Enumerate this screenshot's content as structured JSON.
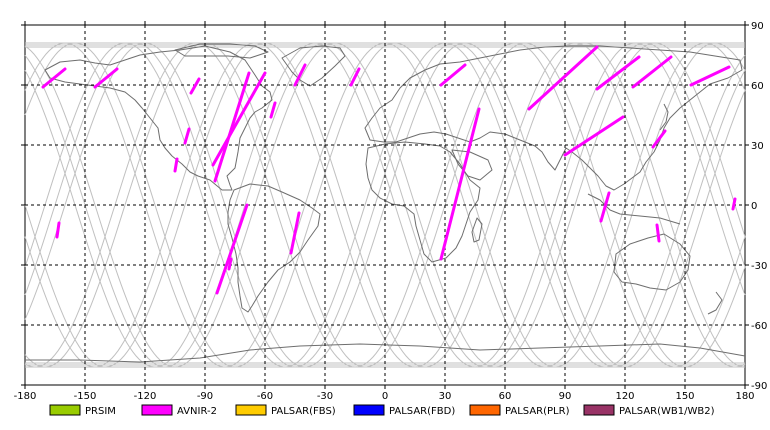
{
  "map": {
    "lon_range": [
      -180,
      180
    ],
    "lat_range": [
      -90,
      90
    ],
    "lon_ticks": [
      {
        "value": -180,
        "label": "-180"
      },
      {
        "value": -150,
        "label": "-150"
      },
      {
        "value": -120,
        "label": "-120"
      },
      {
        "value": -90,
        "label": "-90"
      },
      {
        "value": -60,
        "label": "-60"
      },
      {
        "value": -30,
        "label": "-30"
      },
      {
        "value": 0,
        "label": "0"
      },
      {
        "value": 30,
        "label": "30"
      },
      {
        "value": 60,
        "label": "60"
      },
      {
        "value": 90,
        "label": "90"
      },
      {
        "value": 120,
        "label": "120"
      },
      {
        "value": 150,
        "label": "150"
      },
      {
        "value": 180,
        "label": "180"
      }
    ],
    "lat_ticks": [
      {
        "value": 90,
        "label": "90"
      },
      {
        "value": 60,
        "label": "60"
      },
      {
        "value": 30,
        "label": "30"
      },
      {
        "value": 0,
        "label": "0"
      },
      {
        "value": -30,
        "label": "-30"
      },
      {
        "value": -60,
        "label": "-60"
      },
      {
        "value": -90,
        "label": "-90"
      }
    ],
    "orbit_track_color": "#c0c0c0",
    "coastline_color": "#6e6e6e",
    "grid_color": "#000000",
    "acquisition_color": "#ff00ff"
  },
  "acquisition_segments": [
    {
      "sensor": "AVNIR-2",
      "from": [
        -160,
        68
      ],
      "to": [
        -171,
        59
      ]
    },
    {
      "sensor": "AVNIR-2",
      "from": [
        -134,
        68
      ],
      "to": [
        -145,
        59
      ]
    },
    {
      "sensor": "AVNIR-2",
      "from": [
        -93,
        63
      ],
      "to": [
        -97,
        56
      ]
    },
    {
      "sensor": "AVNIR-2",
      "from": [
        -98,
        38
      ],
      "to": [
        -100,
        31
      ]
    },
    {
      "sensor": "AVNIR-2",
      "from": [
        -104,
        23
      ],
      "to": [
        -105,
        17
      ]
    },
    {
      "sensor": "AVNIR-2",
      "from": [
        -68,
        66
      ],
      "to": [
        -85,
        12
      ]
    },
    {
      "sensor": "AVNIR-2",
      "from": [
        -60,
        66
      ],
      "to": [
        -86,
        20
      ]
    },
    {
      "sensor": "AVNIR-2",
      "from": [
        -55,
        51
      ],
      "to": [
        -57,
        44
      ]
    },
    {
      "sensor": "AVNIR-2",
      "from": [
        -69,
        0
      ],
      "to": [
        -84,
        -44
      ]
    },
    {
      "sensor": "AVNIR-2",
      "from": [
        -77,
        -27
      ],
      "to": [
        -78,
        -32
      ]
    },
    {
      "sensor": "AVNIR-2",
      "from": [
        -43,
        -4
      ],
      "to": [
        -47,
        -24
      ]
    },
    {
      "sensor": "AVNIR-2",
      "from": [
        -163,
        -9
      ],
      "to": [
        -164,
        -16
      ]
    },
    {
      "sensor": "AVNIR-2",
      "from": [
        -40,
        70
      ],
      "to": [
        -45,
        60
      ]
    },
    {
      "sensor": "AVNIR-2",
      "from": [
        -13,
        68
      ],
      "to": [
        -17,
        60
      ]
    },
    {
      "sensor": "AVNIR-2",
      "from": [
        40,
        70
      ],
      "to": [
        28,
        60
      ]
    },
    {
      "sensor": "AVNIR-2",
      "from": [
        47,
        48
      ],
      "to": [
        28,
        -27
      ]
    },
    {
      "sensor": "AVNIR-2",
      "from": [
        106,
        79
      ],
      "to": [
        72,
        48
      ]
    },
    {
      "sensor": "AVNIR-2",
      "from": [
        127,
        74
      ],
      "to": [
        106,
        58
      ]
    },
    {
      "sensor": "AVNIR-2",
      "from": [
        119,
        44
      ],
      "to": [
        90,
        25
      ]
    },
    {
      "sensor": "AVNIR-2",
      "from": [
        143,
        74
      ],
      "to": [
        124,
        59
      ]
    },
    {
      "sensor": "AVNIR-2",
      "from": [
        172,
        69
      ],
      "to": [
        153,
        60
      ]
    },
    {
      "sensor": "AVNIR-2",
      "from": [
        140,
        37
      ],
      "to": [
        134,
        29
      ]
    },
    {
      "sensor": "AVNIR-2",
      "from": [
        112,
        6
      ],
      "to": [
        108,
        -8
      ]
    },
    {
      "sensor": "AVNIR-2",
      "from": [
        136,
        -10
      ],
      "to": [
        137,
        -18
      ]
    },
    {
      "sensor": "AVNIR-2",
      "from": [
        175,
        3
      ],
      "to": [
        174,
        -2
      ]
    }
  ],
  "legend": [
    {
      "id": "prism",
      "label": "PRSIM",
      "color": "#99cc00"
    },
    {
      "id": "avnir2",
      "label": "AVNIR-2",
      "color": "#ff00ff"
    },
    {
      "id": "palsar-fbs",
      "label": "PALSAR(FBS)",
      "color": "#ffcc00"
    },
    {
      "id": "palsar-fbd",
      "label": "PALSAR(FBD)",
      "color": "#0000ff"
    },
    {
      "id": "palsar-plr",
      "label": "PALSAR(PLR)",
      "color": "#ff6600"
    },
    {
      "id": "palsar-wb",
      "label": "PALSAR(WB1/WB2)",
      "color": "#993366"
    }
  ]
}
